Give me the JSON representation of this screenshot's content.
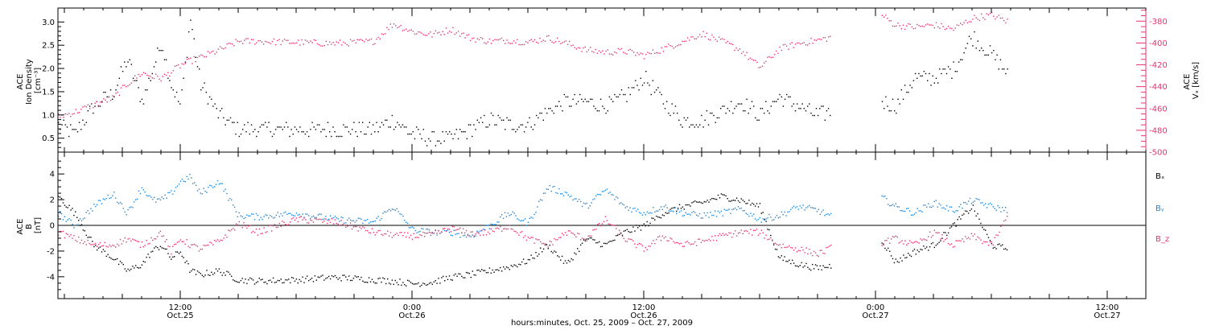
{
  "chart_data": [
    {
      "type": "scatter",
      "panel": "top",
      "ylabel": [
        "ACE",
        "Ion Density",
        "[cm⁻³]"
      ],
      "ylim": [
        0.2,
        3.3
      ],
      "yticks": [
        "0.5",
        "1.0",
        "1.5",
        "2.0",
        "2.5",
        "3.0"
      ],
      "ylabel_right": [
        "ACE",
        "Vₓ [km/s]"
      ],
      "ylim_right": [
        -500,
        -368
      ],
      "yticks_right": [
        "-380",
        "-400",
        "-420",
        "-440",
        "-460",
        "-480",
        "-500"
      ],
      "colors": {
        "density": "#000000",
        "vx": "#e8336d"
      },
      "series": [
        {
          "name": "density",
          "axis": "left",
          "x": [
            "Oct 25 05:40",
            "Oct 25 06:30",
            "Oct 25 07:30",
            "Oct 25 08:30",
            "Oct 25 09:15",
            "Oct 25 10:00",
            "Oct 25 10:30",
            "Oct 25 11:00",
            "Oct 25 11:30",
            "Oct 25 12:00",
            "Oct 25 12:30",
            "Oct 25 13:00",
            "Oct 25 14:00",
            "Oct 25 15:00",
            "Oct 25 16:00",
            "Oct 25 18:00",
            "Oct 25 20:00",
            "Oct 25 22:00",
            "Oct 25 23:00",
            "Oct 26 00:00",
            "Oct 26 01:00",
            "Oct 26 02:00",
            "Oct 26 03:00",
            "Oct 26 04:00",
            "Oct 26 05:00",
            "Oct 26 06:00",
            "Oct 26 07:00",
            "Oct 26 08:00",
            "Oct 26 09:00",
            "Oct 26 10:00",
            "Oct 26 11:00",
            "Oct 26 12:00",
            "Oct 26 13:00",
            "Oct 26 14:00",
            "Oct 26 15:00",
            "Oct 26 16:00",
            "Oct 26 17:00",
            "Oct 26 18:00",
            "Oct 26 19:00",
            "Oct 26 20:00",
            "Oct 26 21:00",
            "Oct 26 22:00",
            "Oct 27 00:15",
            "Oct 27 01:00",
            "Oct 27 02:00",
            "Oct 27 03:00",
            "Oct 27 04:00",
            "Oct 27 05:00",
            "Oct 27 06:00",
            "Oct 27 06:50"
          ],
          "values": [
            0.8,
            0.6,
            1.2,
            1.5,
            2.2,
            1.3,
            1.9,
            2.6,
            1.7,
            1.2,
            3.1,
            1.7,
            1.0,
            0.7,
            0.7,
            0.7,
            0.7,
            0.7,
            0.9,
            0.6,
            0.5,
            0.5,
            0.7,
            0.9,
            0.8,
            0.8,
            1.1,
            1.3,
            1.3,
            1.2,
            1.4,
            1.8,
            1.3,
            0.9,
            0.9,
            1.1,
            1.3,
            1.0,
            1.4,
            1.2,
            1.0,
            1.1,
            1.3,
            1.2,
            1.8,
            1.8,
            2.0,
            2.7,
            2.3,
            1.9
          ]
        },
        {
          "name": "vx",
          "axis": "right",
          "x": [
            "Oct 25 05:40",
            "Oct 25 06:30",
            "Oct 25 07:30",
            "Oct 25 08:30",
            "Oct 25 09:15",
            "Oct 25 10:00",
            "Oct 25 10:30",
            "Oct 25 11:00",
            "Oct 25 11:30",
            "Oct 25 12:00",
            "Oct 25 12:30",
            "Oct 25 13:00",
            "Oct 25 14:00",
            "Oct 25 15:00",
            "Oct 25 16:00",
            "Oct 25 18:00",
            "Oct 25 20:00",
            "Oct 25 22:00",
            "Oct 25 23:00",
            "Oct 26 00:00",
            "Oct 26 01:00",
            "Oct 26 02:00",
            "Oct 26 03:00",
            "Oct 26 04:00",
            "Oct 26 05:00",
            "Oct 26 06:00",
            "Oct 26 07:00",
            "Oct 26 08:00",
            "Oct 26 09:00",
            "Oct 26 10:00",
            "Oct 26 11:00",
            "Oct 26 12:00",
            "Oct 26 13:00",
            "Oct 26 14:00",
            "Oct 26 15:00",
            "Oct 26 16:00",
            "Oct 26 17:00",
            "Oct 26 18:00",
            "Oct 26 19:00",
            "Oct 26 20:00",
            "Oct 26 21:00",
            "Oct 26 22:00",
            "Oct 27 00:15",
            "Oct 27 01:00",
            "Oct 27 02:00",
            "Oct 27 03:00",
            "Oct 27 04:00",
            "Oct 27 05:00",
            "Oct 27 06:00",
            "Oct 27 06:50"
          ],
          "values": [
            -467,
            -463,
            -456,
            -450,
            -437,
            -427,
            -430,
            -432,
            -426,
            -420,
            -416,
            -413,
            -406,
            -398,
            -398,
            -399,
            -400,
            -398,
            -382,
            -389,
            -392,
            -387,
            -395,
            -398,
            -397,
            -399,
            -395,
            -400,
            -406,
            -408,
            -407,
            -411,
            -405,
            -398,
            -391,
            -398,
            -406,
            -422,
            -405,
            -400,
            -397,
            -393,
            -373,
            -383,
            -385,
            -383,
            -387,
            -377,
            -374,
            -380
          ]
        }
      ]
    },
    {
      "type": "scatter",
      "panel": "bottom",
      "ylabel": [
        "ACE",
        "B",
        "[nT]"
      ],
      "ylim": [
        -5.7,
        5.7
      ],
      "yticks": [
        "-4",
        "-2",
        "0",
        "2",
        "4"
      ],
      "legend": [
        "Bₓ",
        "Bᵧ",
        "B_z"
      ],
      "legend_position": "right",
      "colors": {
        "bx": "#000000",
        "by": "#1a87de",
        "bz": "#e8336d"
      },
      "series": [
        {
          "name": "Bₓ",
          "x": [
            "Oct 25 05:40",
            "Oct 25 06:30",
            "Oct 25 07:30",
            "Oct 25 08:30",
            "Oct 25 09:15",
            "Oct 25 10:00",
            "Oct 25 10:30",
            "Oct 25 11:00",
            "Oct 25 11:30",
            "Oct 25 12:00",
            "Oct 25 12:30",
            "Oct 25 13:00",
            "Oct 25 14:00",
            "Oct 25 15:00",
            "Oct 25 16:00",
            "Oct 25 18:00",
            "Oct 25 20:00",
            "Oct 25 22:00",
            "Oct 25 23:00",
            "Oct 26 00:00",
            "Oct 26 01:00",
            "Oct 26 02:00",
            "Oct 26 03:00",
            "Oct 26 04:00",
            "Oct 26 05:00",
            "Oct 26 06:00",
            "Oct 26 07:00",
            "Oct 26 08:00",
            "Oct 26 09:00",
            "Oct 26 10:00",
            "Oct 26 11:00",
            "Oct 26 12:00",
            "Oct 26 13:00",
            "Oct 26 14:00",
            "Oct 26 15:00",
            "Oct 26 16:00",
            "Oct 26 17:00",
            "Oct 26 18:00",
            "Oct 26 19:00",
            "Oct 26 20:00",
            "Oct 26 21:00",
            "Oct 26 22:00",
            "Oct 27 00:15",
            "Oct 27 01:00",
            "Oct 27 02:00",
            "Oct 27 03:00",
            "Oct 27 04:00",
            "Oct 27 05:00",
            "Oct 27 06:00",
            "Oct 27 06:50"
          ],
          "values": [
            2.3,
            1.0,
            -1.5,
            -2.5,
            -3.5,
            -3.0,
            -2.0,
            -1.5,
            -2.5,
            -2.0,
            -3.5,
            -3.8,
            -3.5,
            -4.2,
            -4.3,
            -4.2,
            -4.0,
            -4.2,
            -4.3,
            -4.5,
            -4.4,
            -4.0,
            -3.8,
            -3.5,
            -3.2,
            -2.7,
            -1.5,
            -3.0,
            -1.0,
            -1.5,
            -0.5,
            0.0,
            1.0,
            1.5,
            1.8,
            2.3,
            2.0,
            1.5,
            -2.5,
            -3.0,
            -3.3,
            -3.0,
            -1.0,
            -2.8,
            -2.0,
            -1.5,
            0.0,
            1.5,
            -1.5,
            -1.8
          ]
        },
        {
          "name": "Bᵧ",
          "x": [
            "Oct 25 05:40",
            "Oct 25 06:30",
            "Oct 25 07:30",
            "Oct 25 08:30",
            "Oct 25 09:15",
            "Oct 25 10:00",
            "Oct 25 10:30",
            "Oct 25 11:00",
            "Oct 25 11:30",
            "Oct 25 12:00",
            "Oct 25 12:30",
            "Oct 25 13:00",
            "Oct 25 14:00",
            "Oct 25 15:00",
            "Oct 25 16:00",
            "Oct 25 18:00",
            "Oct 25 20:00",
            "Oct 25 22:00",
            "Oct 25 23:00",
            "Oct 26 00:00",
            "Oct 26 01:00",
            "Oct 26 02:00",
            "Oct 26 03:00",
            "Oct 26 04:00",
            "Oct 26 05:00",
            "Oct 26 06:00",
            "Oct 26 07:00",
            "Oct 26 08:00",
            "Oct 26 09:00",
            "Oct 26 10:00",
            "Oct 26 11:00",
            "Oct 26 12:00",
            "Oct 26 13:00",
            "Oct 26 14:00",
            "Oct 26 15:00",
            "Oct 26 16:00",
            "Oct 26 17:00",
            "Oct 26 18:00",
            "Oct 26 19:00",
            "Oct 26 20:00",
            "Oct 26 21:00",
            "Oct 26 22:00",
            "Oct 27 00:15",
            "Oct 27 01:00",
            "Oct 27 02:00",
            "Oct 27 03:00",
            "Oct 27 04:00",
            "Oct 27 05:00",
            "Oct 27 06:00",
            "Oct 27 06:50"
          ],
          "values": [
            1.0,
            0.0,
            1.5,
            2.5,
            1.0,
            3.0,
            2.0,
            2.0,
            2.5,
            3.5,
            3.8,
            2.5,
            3.5,
            0.8,
            0.7,
            1.0,
            0.5,
            0.3,
            1.5,
            -0.3,
            -0.5,
            -0.5,
            -0.8,
            0.0,
            1.0,
            0.2,
            3.0,
            2.5,
            1.5,
            2.8,
            1.5,
            1.0,
            1.5,
            1.0,
            0.8,
            1.0,
            1.3,
            0.5,
            0.8,
            1.5,
            1.2,
            0.5,
            2.3,
            1.5,
            1.0,
            1.8,
            1.2,
            2.0,
            1.5,
            1.2
          ]
        },
        {
          "name": "B_z",
          "x": [
            "Oct 25 05:40",
            "Oct 25 06:30",
            "Oct 25 07:30",
            "Oct 25 08:30",
            "Oct 25 09:15",
            "Oct 25 10:00",
            "Oct 25 10:30",
            "Oct 25 11:00",
            "Oct 25 11:30",
            "Oct 25 12:00",
            "Oct 25 12:30",
            "Oct 25 13:00",
            "Oct 25 14:00",
            "Oct 25 15:00",
            "Oct 25 16:00",
            "Oct 25 18:00",
            "Oct 25 20:00",
            "Oct 25 22:00",
            "Oct 25 23:00",
            "Oct 26 00:00",
            "Oct 26 01:00",
            "Oct 26 02:00",
            "Oct 26 03:00",
            "Oct 26 04:00",
            "Oct 26 05:00",
            "Oct 26 06:00",
            "Oct 26 07:00",
            "Oct 26 08:00",
            "Oct 26 09:00",
            "Oct 26 10:00",
            "Oct 26 11:00",
            "Oct 26 12:00",
            "Oct 26 13:00",
            "Oct 26 14:00",
            "Oct 26 15:00",
            "Oct 26 16:00",
            "Oct 26 17:00",
            "Oct 26 18:00",
            "Oct 26 19:00",
            "Oct 26 20:00",
            "Oct 26 21:00",
            "Oct 26 22:00",
            "Oct 27 00:15",
            "Oct 27 01:00",
            "Oct 27 02:00",
            "Oct 27 03:00",
            "Oct 27 04:00",
            "Oct 27 05:00",
            "Oct 27 06:00",
            "Oct 27 06:50"
          ],
          "values": [
            -0.5,
            -1.0,
            -1.5,
            -1.5,
            -1.0,
            -1.5,
            -1.0,
            -0.5,
            -2.0,
            -1.0,
            -1.5,
            -1.8,
            -1.2,
            0.2,
            -0.5,
            0.5,
            0.3,
            -0.5,
            -0.7,
            -0.8,
            -0.7,
            -0.2,
            -0.6,
            -0.5,
            0.0,
            -1.0,
            -1.5,
            -0.5,
            -1.0,
            0.5,
            -1.0,
            -1.8,
            -0.8,
            -1.5,
            -1.2,
            -0.8,
            -0.5,
            -0.5,
            -1.5,
            -1.8,
            -2.2,
            -1.5,
            -1.3,
            -1.0,
            -1.5,
            -0.5,
            -1.5,
            -0.8,
            -1.5,
            0.8
          ]
        }
      ]
    }
  ],
  "xaxis": {
    "xlim": [
      "Oct 25 05:40",
      "Oct 27 14:00"
    ],
    "ticks": [
      {
        "t": "Oct 25 12:00",
        "time": "12:00",
        "date": "Oct.25"
      },
      {
        "t": "Oct 26 00:00",
        "time": "0:00",
        "date": "Oct.26"
      },
      {
        "t": "Oct 26 12:00",
        "time": "12:00",
        "date": "Oct.26"
      },
      {
        "t": "Oct 27 00:00",
        "time": "0:00",
        "date": "Oct.27"
      },
      {
        "t": "Oct 27 12:00",
        "time": "12:00",
        "date": "Oct.27"
      }
    ],
    "xlabel": "hours:minutes, Oct. 25, 2009 – Oct. 27, 2009"
  }
}
